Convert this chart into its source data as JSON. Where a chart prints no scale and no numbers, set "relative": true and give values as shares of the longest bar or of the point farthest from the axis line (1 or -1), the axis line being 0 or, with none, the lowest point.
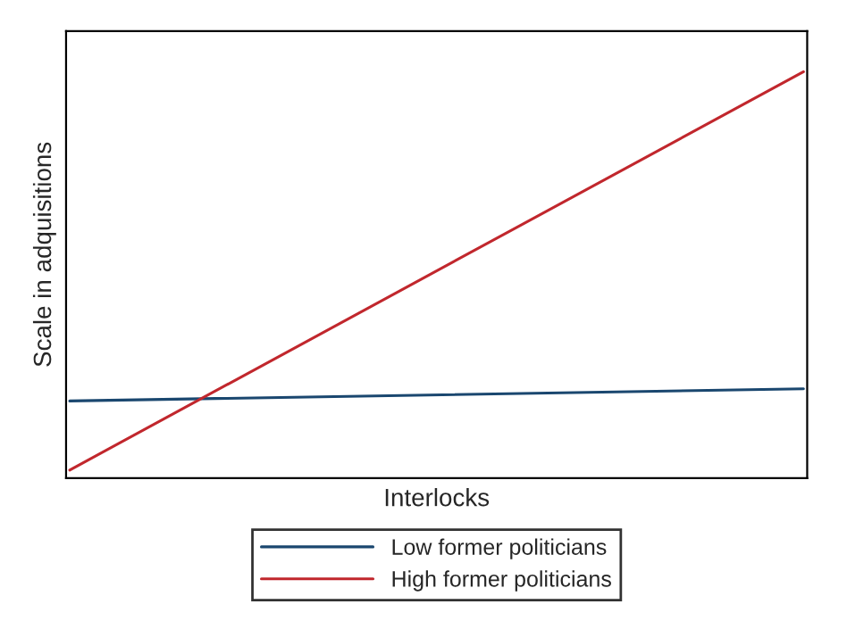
{
  "chart_data": {
    "type": "line",
    "xlabel": "Interlocks",
    "ylabel": "Scale in adquisitions",
    "relative": true,
    "categories": [
      null,
      null
    ],
    "legend": "bottom",
    "series": [
      {
        "name": "Low former politicians",
        "color": "#1a476f",
        "values": [
          0.19,
          0.22
        ]
      },
      {
        "name": "High former politicians",
        "color": "#c1272d",
        "values": [
          0.02,
          1.0
        ]
      }
    ]
  }
}
